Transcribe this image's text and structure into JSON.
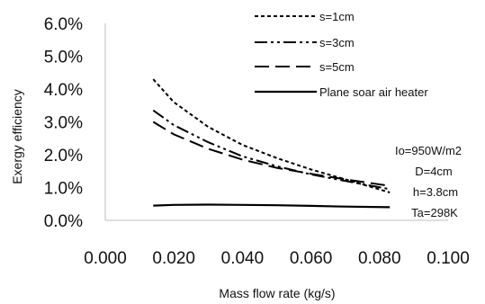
{
  "chart_data": {
    "type": "line",
    "title": "",
    "xlabel": "Mass flow rate (kg/s)",
    "ylabel": "Exergy efficiency",
    "xlim": [
      0.0,
      0.1
    ],
    "ylim": [
      0.0,
      0.06
    ],
    "x_ticks": [
      "0.000",
      "0.020",
      "0.040",
      "0.060",
      "0.080",
      "0.100"
    ],
    "y_ticks": [
      "0.0%",
      "1.0%",
      "2.0%",
      "3.0%",
      "4.0%",
      "5.0%",
      "6.0%"
    ],
    "grid": false,
    "legend_position": "top-right",
    "series": [
      {
        "name": "s=1cm",
        "style": "dotted",
        "x": [
          0.014,
          0.02,
          0.03,
          0.04,
          0.05,
          0.06,
          0.07,
          0.083
        ],
        "y": [
          0.043,
          0.036,
          0.0285,
          0.023,
          0.019,
          0.0155,
          0.0125,
          0.0085
        ]
      },
      {
        "name": "s=3cm",
        "style": "dash-dot-dot",
        "x": [
          0.014,
          0.02,
          0.03,
          0.04,
          0.05,
          0.06,
          0.07,
          0.083
        ],
        "y": [
          0.0335,
          0.029,
          0.0238,
          0.0195,
          0.0165,
          0.014,
          0.012,
          0.0095
        ]
      },
      {
        "name": "s=5cm",
        "style": "dashed",
        "x": [
          0.014,
          0.02,
          0.03,
          0.04,
          0.05,
          0.06,
          0.07,
          0.083
        ],
        "y": [
          0.03,
          0.0262,
          0.0218,
          0.0185,
          0.016,
          0.0142,
          0.0125,
          0.0105
        ]
      },
      {
        "name": "Plane soar air heater",
        "style": "solid",
        "x": [
          0.014,
          0.02,
          0.03,
          0.04,
          0.05,
          0.06,
          0.07,
          0.083
        ],
        "y": [
          0.0045,
          0.0047,
          0.0048,
          0.0047,
          0.0046,
          0.0044,
          0.0042,
          0.004
        ]
      }
    ],
    "annotations": [
      "Io=950W/m2",
      "D=4cm",
      "h=3.8cm",
      "Ta=298K"
    ]
  }
}
